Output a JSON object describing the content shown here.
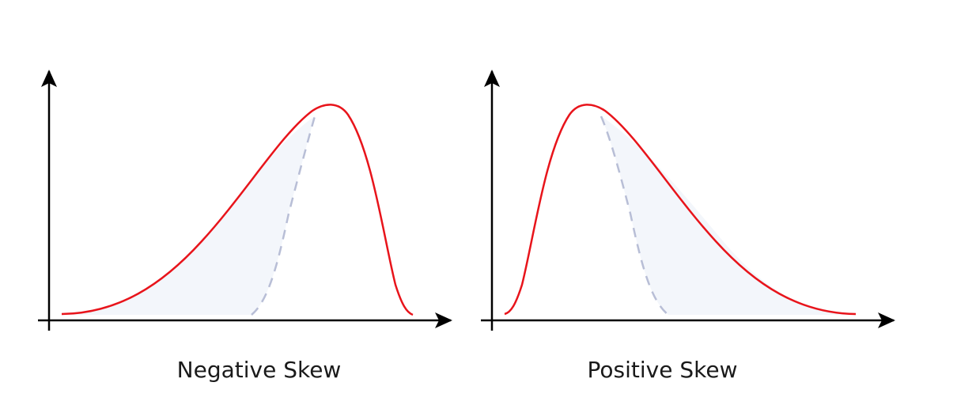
{
  "panels": [
    {
      "caption": "Negative Skew",
      "skew": "negative"
    },
    {
      "caption": "Positive Skew",
      "skew": "positive"
    }
  ],
  "colors": {
    "curve": "#e8141b",
    "axis": "#000000",
    "dashed": "#b8bed6",
    "shade": "#f3f6fb",
    "caption": "#1a1a1a"
  }
}
